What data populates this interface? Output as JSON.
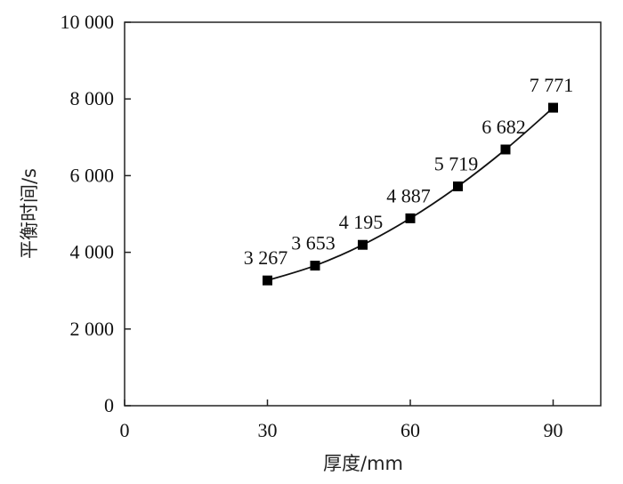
{
  "chart_data": {
    "type": "line",
    "title": "",
    "xlabel": "厚度/mm",
    "ylabel": "平衡时间/s",
    "xlim": [
      0,
      100
    ],
    "ylim": [
      0,
      10000
    ],
    "x_ticks": [
      0,
      30,
      60,
      90
    ],
    "x_tick_labels": [
      "0",
      "30",
      "60",
      "90"
    ],
    "y_ticks": [
      0,
      2000,
      4000,
      6000,
      8000,
      10000
    ],
    "y_tick_labels": [
      "0",
      "2 000",
      "4 000",
      "6 000",
      "8 000",
      "10 000"
    ],
    "grid": false,
    "legend": "none",
    "marker": "square",
    "line_color": "#111111",
    "series": [
      {
        "x": [
          30,
          40,
          50,
          60,
          70,
          80,
          90
        ],
        "values": [
          3267,
          3653,
          4195,
          4887,
          5719,
          6682,
          7771
        ],
        "labels": [
          "3 267",
          "3 653",
          "4 195",
          "4 887",
          "5 719",
          "6 682",
          "7 771"
        ]
      }
    ]
  }
}
